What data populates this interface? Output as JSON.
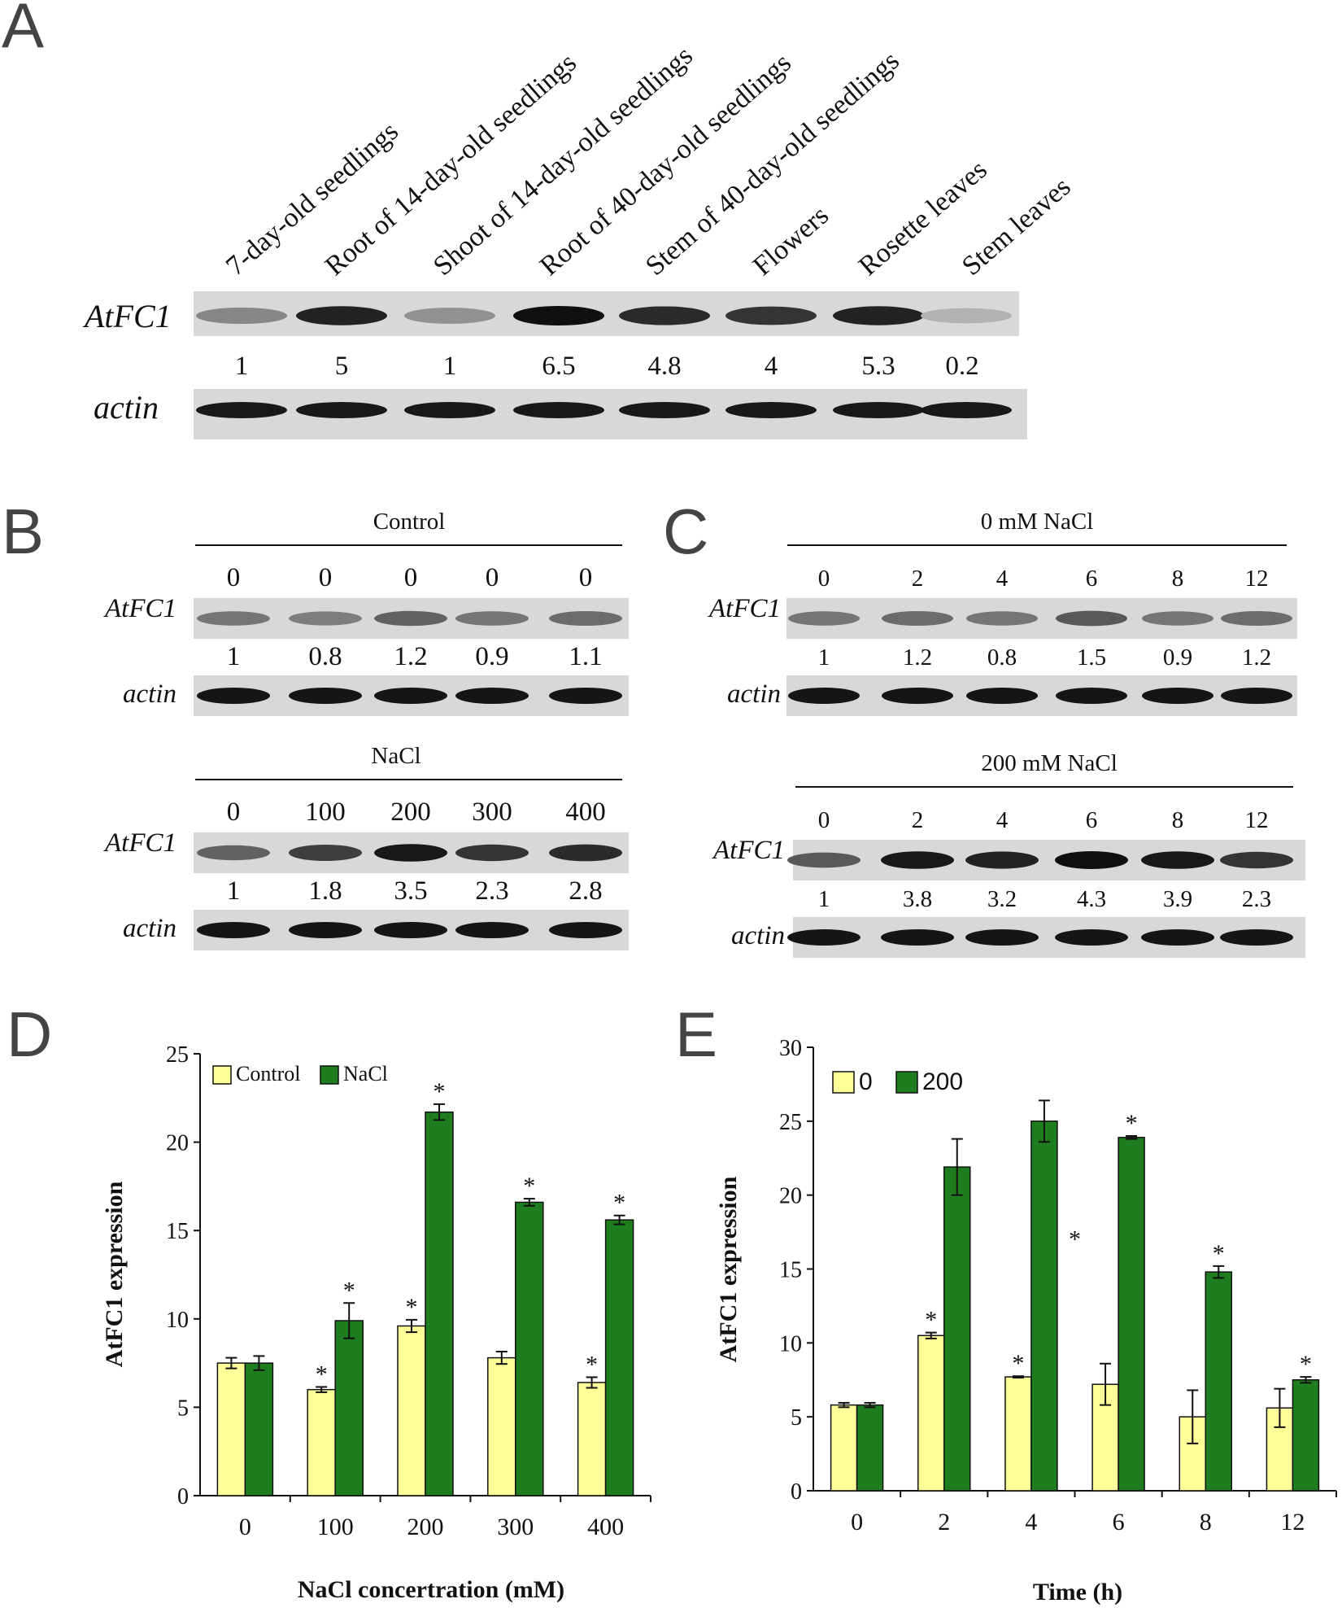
{
  "panel_letters": {
    "a": "A",
    "b": "B",
    "c": "C",
    "d": "D",
    "e": "E"
  },
  "panel_a": {
    "lanes": [
      "7-day-old seedlings",
      "Root of 14-day-old seedlings",
      "Shoot of 14-day-old seedlings",
      "Root of 40-day-old seedlings",
      "Stem of 40-day-old seedlings",
      "Flowers",
      "Rosette leaves",
      "Stem leaves"
    ],
    "gene_label": "AtFC1",
    "control_label": "actin",
    "values": [
      "1",
      "5",
      "1",
      "6.5",
      "4.8",
      "4",
      "5.3",
      "0.2"
    ],
    "band_intensity": [
      0.35,
      0.9,
      0.3,
      1.0,
      0.85,
      0.8,
      0.9,
      0.12
    ]
  },
  "panel_b": {
    "top": {
      "header": "Control",
      "lanes": [
        "0",
        "0",
        "0",
        "0",
        "0"
      ],
      "gene_label": "AtFC1",
      "control_label": "actin",
      "values": [
        "1",
        "0.8",
        "1.2",
        "0.9",
        "1.1"
      ],
      "band_intensity": [
        0.45,
        0.4,
        0.55,
        0.45,
        0.5
      ]
    },
    "bottom": {
      "header": "NaCl",
      "lanes": [
        "0",
        "100",
        "200",
        "300",
        "400"
      ],
      "gene_label": "AtFC1",
      "control_label": "actin",
      "values": [
        "1",
        "1.8",
        "3.5",
        "2.3",
        "2.8"
      ],
      "band_intensity": [
        0.55,
        0.75,
        0.95,
        0.8,
        0.85
      ]
    }
  },
  "panel_c": {
    "top": {
      "header": "0 mM NaCl",
      "lanes": [
        "0",
        "2",
        "4",
        "6",
        "8",
        "12"
      ],
      "gene_label": "AtFC1",
      "control_label": "actin",
      "values": [
        "1",
        "1.2",
        "0.8",
        "1.5",
        "0.9",
        "1.2"
      ],
      "band_intensity": [
        0.45,
        0.5,
        0.45,
        0.6,
        0.45,
        0.5
      ]
    },
    "bottom": {
      "header": "200 mM NaCl",
      "lanes": [
        "0",
        "2",
        "4",
        "6",
        "8",
        "12"
      ],
      "gene_label": "AtFC1",
      "control_label": "actin",
      "values": [
        "1",
        "3.8",
        "3.2",
        "4.3",
        "3.9",
        "2.3"
      ],
      "band_intensity": [
        0.6,
        0.95,
        0.9,
        1.0,
        0.95,
        0.8
      ]
    }
  },
  "chart_data": [
    {
      "type": "bar",
      "panel": "D",
      "categories": [
        "0",
        "100",
        "200",
        "300",
        "400"
      ],
      "series": [
        {
          "name": "Control",
          "color": "#ffff99",
          "values": [
            7.5,
            6.0,
            9.6,
            7.8,
            6.4
          ],
          "errors": [
            0.3,
            0.15,
            0.35,
            0.35,
            0.3
          ],
          "stars": [
            false,
            true,
            true,
            false,
            true
          ]
        },
        {
          "name": "NaCl",
          "color": "#1e7d1e",
          "values": [
            7.5,
            9.9,
            21.7,
            16.6,
            15.6
          ],
          "errors": [
            0.4,
            1.0,
            0.45,
            0.2,
            0.25
          ],
          "stars": [
            false,
            true,
            true,
            true,
            true
          ]
        }
      ],
      "xlabel": "NaCl concertration (mM)",
      "ylabel": "AtFC1 expression",
      "ylim": [
        0,
        25
      ],
      "yticks": [
        "0",
        "5",
        "10",
        "15",
        "20",
        "25"
      ],
      "legend": "top-left",
      "grid": false
    },
    {
      "type": "bar",
      "panel": "E",
      "categories": [
        "0",
        "2",
        "4",
        "6",
        "8",
        "12"
      ],
      "series": [
        {
          "name": "0",
          "color": "#ffff99",
          "values": [
            5.8,
            10.5,
            7.7,
            7.2,
            5.0,
            5.6
          ],
          "errors": [
            0.15,
            0.2,
            0.05,
            1.4,
            1.8,
            1.3
          ],
          "stars": [
            false,
            true,
            true,
            false,
            false,
            false
          ]
        },
        {
          "name": "200",
          "color": "#1e7d1e",
          "values": [
            5.8,
            21.9,
            25.0,
            23.9,
            14.8,
            7.5
          ],
          "errors": [
            0.15,
            1.9,
            1.4,
            0.1,
            0.4,
            0.2
          ],
          "stars": [
            false,
            false,
            false,
            true,
            true,
            true
          ]
        }
      ],
      "extra_stars": [
        {
          "category": "4",
          "y": 16.5
        }
      ],
      "xlabel": "Time (h)",
      "ylabel": "AtFC1 expression",
      "ylim": [
        0,
        30
      ],
      "yticks": [
        "0",
        "5",
        "10",
        "15",
        "20",
        "25",
        "30"
      ],
      "legend": "top-left",
      "grid": false
    }
  ]
}
